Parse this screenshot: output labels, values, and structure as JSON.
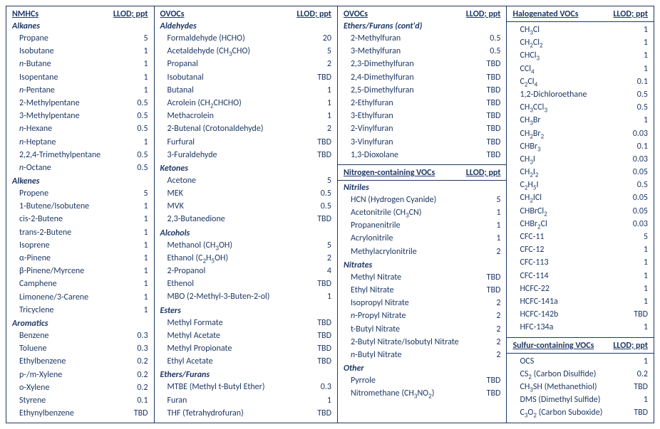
{
  "headers": {
    "nmhc": "NMHCs",
    "ovoc": "OVOCs",
    "nvoc": "Nitrogen-containing VOCs",
    "halo": "Halogenated VOCs",
    "svoc": "Sulfur-containing VOCs",
    "llod": "LLOD; ppt"
  },
  "col1": {
    "groups": [
      {
        "title": "Alkanes",
        "rows": [
          {
            "name": "Propane",
            "val": "5"
          },
          {
            "name": "Isobutane",
            "val": "1"
          },
          {
            "name_html": "<span class='it'>n</span>-Butane",
            "val": "1"
          },
          {
            "name": "Isopentane",
            "val": "1"
          },
          {
            "name_html": "<span class='it'>n</span>-Pentane",
            "val": "1"
          },
          {
            "name": "2-Methylpentane",
            "val": "0.5"
          },
          {
            "name": "3-Methylpentane",
            "val": "0.5"
          },
          {
            "name_html": "<span class='it'>n</span>-Hexane",
            "val": "0.5"
          },
          {
            "name_html": "<span class='it'>n</span>-Heptane",
            "val": "1"
          },
          {
            "name": "2,2,4-Trimethylpentane",
            "val": "0.5"
          },
          {
            "name_html": "<span class='it'>n</span>-Octane",
            "val": "0.5"
          }
        ]
      },
      {
        "title": "Alkenes",
        "rows": [
          {
            "name": "Propene",
            "val": "5"
          },
          {
            "name": "1-Butene/Isobutene",
            "val": "1"
          },
          {
            "name": "cis-2-Butene",
            "val": "1"
          },
          {
            "name": "trans-2-Butene",
            "val": "1"
          },
          {
            "name": "Isoprene",
            "val": "1"
          },
          {
            "name": "α-Pinene",
            "val": "1"
          },
          {
            "name": "β-Pinene/Myrcene",
            "val": "1"
          },
          {
            "name": "Camphene",
            "val": "1"
          },
          {
            "name": "Limonene/3-Carene",
            "val": "1"
          },
          {
            "name": "Tricyclene",
            "val": "1"
          }
        ]
      },
      {
        "title": "Aromatics",
        "rows": [
          {
            "name": "Benzene",
            "val": "0.3"
          },
          {
            "name": "Toluene",
            "val": "0.3"
          },
          {
            "name": "Ethylbenzene",
            "val": "0.2"
          },
          {
            "name": "p-/m-Xylene",
            "val": "0.2"
          },
          {
            "name": "o-Xylene",
            "val": "0.2"
          },
          {
            "name": "Styrene",
            "val": "0.1"
          },
          {
            "name": "Ethynylbenzene",
            "val": "TBD"
          }
        ]
      }
    ]
  },
  "col2": {
    "groups": [
      {
        "title": "Aldehydes",
        "rows": [
          {
            "name": "Formaldehyde (HCHO)",
            "val": "20"
          },
          {
            "name_html": "Acetaldehyde (CH<sub>3</sub>CHO)",
            "val": "5"
          },
          {
            "name": "Propanal",
            "val": "2"
          },
          {
            "name": "Isobutanal",
            "val": "TBD"
          },
          {
            "name": "Butanal",
            "val": "1"
          },
          {
            "name_html": "Acrolein (CH<sub>2</sub>CHCHO)",
            "val": "1"
          },
          {
            "name": "Methacrolein",
            "val": "1"
          },
          {
            "name": "2-Butenal (Crotonaldehyde)",
            "val": "2"
          },
          {
            "name": "Furfural",
            "val": "TBD"
          },
          {
            "name": "3-Furaldehyde",
            "val": "TBD"
          }
        ]
      },
      {
        "title": "Ketones",
        "rows": [
          {
            "name": "Acetone",
            "val": "5"
          },
          {
            "name": "MEK",
            "val": "0.5"
          },
          {
            "name": "MVK",
            "val": "0.5"
          },
          {
            "name": "2,3-Butanedione",
            "val": "TBD"
          }
        ]
      },
      {
        "title": "Alcohols",
        "rows": [
          {
            "name_html": "Methanol (CH<sub>3</sub>OH)",
            "val": "5"
          },
          {
            "name_html": "Ethanol (C<sub>2</sub>H<sub>5</sub>OH)",
            "val": "2"
          },
          {
            "name": "2-Propanol",
            "val": "4"
          },
          {
            "name": "Ethenol",
            "val": "TBD"
          },
          {
            "name": "MBO (2-Methyl-3-Buten-2-ol)",
            "val": "1"
          }
        ]
      },
      {
        "title": "Esters",
        "rows": [
          {
            "name": "Methyl Formate",
            "val": "TBD"
          },
          {
            "name": "Methyl Acetate",
            "val": "TBD"
          },
          {
            "name": "Methyl Propionate",
            "val": "TBD"
          },
          {
            "name": "Ethyl Acetate",
            "val": "TBD"
          }
        ]
      },
      {
        "title": "Ethers/Furans",
        "rows": [
          {
            "name": "MTBE (Methyl t-Butyl Ether)",
            "val": "0.3"
          },
          {
            "name": "Furan",
            "val": "1"
          },
          {
            "name": "THF (Tetrahydrofuran)",
            "val": "TBD"
          }
        ]
      }
    ]
  },
  "col3_top": {
    "groups": [
      {
        "title": "Ethers/Furans (cont'd)",
        "rows": [
          {
            "name": "2-Methylfuran",
            "val": "0.5"
          },
          {
            "name": "3-Methylfuran",
            "val": "0.5"
          },
          {
            "name": "2,3-Dimethylfuran",
            "val": "TBD"
          },
          {
            "name": "2,4-Dimethylfuran",
            "val": "TBD"
          },
          {
            "name": "2,5-Dimethylfuran",
            "val": "TBD"
          },
          {
            "name": "2-Ethylfuran",
            "val": "TBD"
          },
          {
            "name": "3-Ethylfuran",
            "val": "TBD"
          },
          {
            "name": "2-Vinylfuran",
            "val": "TBD"
          },
          {
            "name": "3-Vinylfuran",
            "val": "TBD"
          },
          {
            "name": "1,3-Dioxolane",
            "val": "TBD"
          }
        ]
      }
    ]
  },
  "col3_bot": {
    "groups": [
      {
        "title": "Nitriles",
        "rows": [
          {
            "name": "HCN (Hydrogen Cyanide)",
            "val": "5"
          },
          {
            "name_html": "Acetonitrile (CH<sub>3</sub>CN)",
            "val": "1"
          },
          {
            "name": "Propanenitrile",
            "val": "1"
          },
          {
            "name": "Acrylonitrile",
            "val": "1"
          },
          {
            "name": "Methylacrylonitrile",
            "val": "2"
          }
        ]
      },
      {
        "title": "Nitrates",
        "rows": [
          {
            "name": "Methyl Nitrate",
            "val": "TBD"
          },
          {
            "name": "Ethyl Nitrate",
            "val": "TBD"
          },
          {
            "name": "Isopropyl Nitrate",
            "val": "2"
          },
          {
            "name_html": "<span class='it'>n</span>-Propyl Nitrate",
            "val": "2"
          },
          {
            "name": "t-Butyl Nitrate",
            "val": "2"
          },
          {
            "name": "2-Butyl Nitrate/Isobutyl Nitrate",
            "val": "2"
          },
          {
            "name_html": "<span class='it'>n</span>-Butyl Nitrate",
            "val": "2"
          }
        ]
      },
      {
        "title": "Other",
        "rows": [
          {
            "name": "Pyrrole",
            "val": "TBD"
          },
          {
            "name_html": "Nitromethane (CH<sub>3</sub>NO<sub>2</sub>)",
            "val": "TBD"
          }
        ]
      }
    ]
  },
  "col4_top": {
    "rows": [
      {
        "name_html": "CH<sub>3</sub>Cl",
        "val": "1"
      },
      {
        "name_html": "CH<sub>2</sub>Cl<sub>2</sub>",
        "val": "1"
      },
      {
        "name_html": "CHCl<sub>3</sub>",
        "val": "1"
      },
      {
        "name_html": "CCl<sub>4</sub>",
        "val": "1"
      },
      {
        "name_html": "C<sub>2</sub>Cl<sub>4</sub>",
        "val": "0.1"
      },
      {
        "name": "1,2-Dichloroethane",
        "val": "0.5"
      },
      {
        "name_html": "CH<sub>3</sub>CCl<sub>3</sub>",
        "val": "0.5"
      },
      {
        "name_html": "CH<sub>3</sub>Br",
        "val": "1"
      },
      {
        "name_html": "CH<sub>2</sub>Br<sub>2</sub>",
        "val": "0.03"
      },
      {
        "name_html": "CHBr<sub>3</sub>",
        "val": "0.1"
      },
      {
        "name_html": "CH<sub>3</sub>I",
        "val": "0.03"
      },
      {
        "name_html": "CH<sub>2</sub>I<sub>2</sub>",
        "val": "0.05"
      },
      {
        "name_html": "C<sub>2</sub>H<sub>5</sub>I",
        "val": "0.5"
      },
      {
        "name_html": "CH<sub>2</sub>ICl",
        "val": "0.05"
      },
      {
        "name_html": "CHBrCl<sub>2</sub>",
        "val": "0.05"
      },
      {
        "name_html": "CHBr<sub>2</sub>Cl",
        "val": "0.03"
      },
      {
        "name": "CFC-11",
        "val": "5"
      },
      {
        "name": "CFC-12",
        "val": "1"
      },
      {
        "name": "CFC-113",
        "val": "1"
      },
      {
        "name": "CFC-114",
        "val": "1"
      },
      {
        "name": "HCFC-22",
        "val": "1"
      },
      {
        "name": "HCFC-141a",
        "val": "1"
      },
      {
        "name": "HCFC-142b",
        "val": "TBD"
      },
      {
        "name": "HFC-134a",
        "val": "1"
      }
    ]
  },
  "col4_bot": {
    "rows": [
      {
        "name": "OCS",
        "val": "1"
      },
      {
        "name_html": "CS<sub>2</sub> (Carbon Disulfide)",
        "val": "0.2"
      },
      {
        "name_html": "CH<sub>3</sub>SH (Methanethiol)",
        "val": "TBD"
      },
      {
        "name": "DMS (Dimethyl Sulfide)",
        "val": "1"
      },
      {
        "name_html": "C<sub>3</sub>O<sub>2</sub> (Carbon Suboxide)",
        "val": "TBD"
      }
    ]
  }
}
